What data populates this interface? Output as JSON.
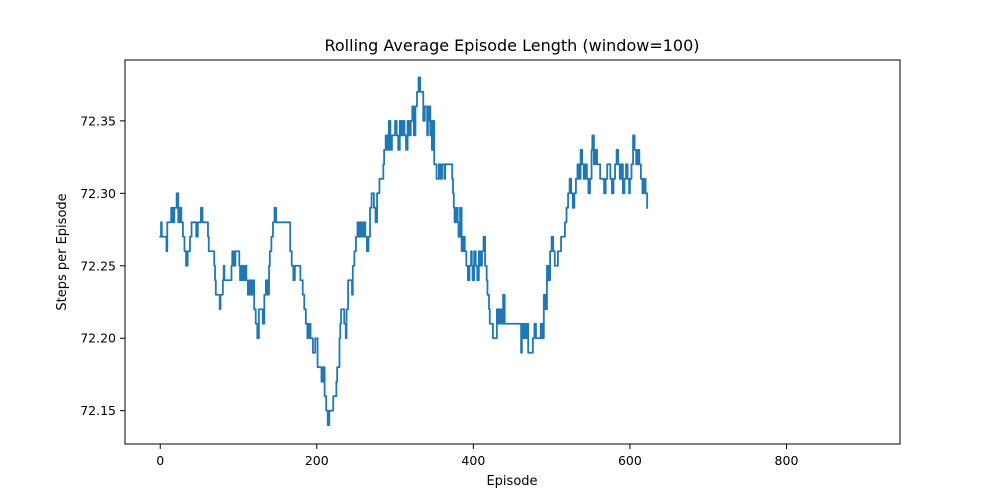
{
  "chart_data": {
    "type": "line",
    "title": "Rolling Average Episode Length (window=100)",
    "xlabel": "Episode",
    "ylabel": "Steps per Episode",
    "xlim": [
      -45,
      945
    ],
    "ylim": [
      72.127,
      72.392
    ],
    "xticks": [
      0,
      200,
      400,
      600,
      800
    ],
    "yticks": [
      72.15,
      72.2,
      72.25,
      72.3,
      72.35
    ],
    "ytick_labels": [
      "72.15",
      "72.20",
      "72.25",
      "72.30",
      "72.35"
    ],
    "grid": false,
    "series": [
      {
        "color": "#1f77b4",
        "points": [
          [
            0,
            72.27
          ],
          [
            1,
            72.28
          ],
          [
            2,
            72.27
          ],
          [
            7,
            72.27
          ],
          [
            8,
            72.26
          ],
          [
            9,
            72.28
          ],
          [
            13,
            72.28
          ],
          [
            14,
            72.29
          ],
          [
            16,
            72.28
          ],
          [
            18,
            72.29
          ],
          [
            20,
            72.29
          ],
          [
            21,
            72.3
          ],
          [
            23,
            72.28
          ],
          [
            25,
            72.29
          ],
          [
            27,
            72.28
          ],
          [
            29,
            72.27
          ],
          [
            31,
            72.26
          ],
          [
            33,
            72.25
          ],
          [
            35,
            72.26
          ],
          [
            38,
            72.27
          ],
          [
            40,
            72.28
          ],
          [
            45,
            72.28
          ],
          [
            46,
            72.27
          ],
          [
            48,
            72.28
          ],
          [
            50,
            72.28
          ],
          [
            52,
            72.29
          ],
          [
            54,
            72.28
          ],
          [
            60,
            72.28
          ],
          [
            61,
            72.27
          ],
          [
            62,
            72.26
          ],
          [
            68,
            72.26
          ],
          [
            69,
            72.25
          ],
          [
            70,
            72.24
          ],
          [
            71,
            72.23
          ],
          [
            75,
            72.23
          ],
          [
            76,
            72.22
          ],
          [
            77,
            72.23
          ],
          [
            80,
            72.24
          ],
          [
            81,
            72.25
          ],
          [
            82,
            72.24
          ],
          [
            90,
            72.24
          ],
          [
            91,
            72.25
          ],
          [
            92,
            72.26
          ],
          [
            94,
            72.25
          ],
          [
            96,
            72.26
          ],
          [
            100,
            72.26
          ],
          [
            101,
            72.25
          ],
          [
            102,
            72.24
          ],
          [
            104,
            72.25
          ],
          [
            106,
            72.24
          ],
          [
            108,
            72.25
          ],
          [
            110,
            72.24
          ],
          [
            112,
            72.23
          ],
          [
            114,
            72.24
          ],
          [
            116,
            72.23
          ],
          [
            118,
            72.24
          ],
          [
            120,
            72.22
          ],
          [
            122,
            72.21
          ],
          [
            124,
            72.2
          ],
          [
            126,
            72.22
          ],
          [
            130,
            72.22
          ],
          [
            131,
            72.21
          ],
          [
            133,
            72.23
          ],
          [
            135,
            72.24
          ],
          [
            137,
            72.23
          ],
          [
            139,
            72.25
          ],
          [
            140,
            72.26
          ],
          [
            142,
            72.27
          ],
          [
            144,
            72.28
          ],
          [
            146,
            72.29
          ],
          [
            148,
            72.28
          ],
          [
            165,
            72.28
          ],
          [
            166,
            72.26
          ],
          [
            168,
            72.25
          ],
          [
            170,
            72.24
          ],
          [
            172,
            72.25
          ],
          [
            178,
            72.25
          ],
          [
            179,
            72.24
          ],
          [
            181,
            72.24
          ],
          [
            182,
            72.23
          ],
          [
            184,
            72.22
          ],
          [
            186,
            72.21
          ],
          [
            188,
            72.2
          ],
          [
            190,
            72.21
          ],
          [
            192,
            72.2
          ],
          [
            195,
            72.19
          ],
          [
            197,
            72.19
          ],
          [
            198,
            72.2
          ],
          [
            200,
            72.2
          ],
          [
            201,
            72.18
          ],
          [
            204,
            72.18
          ],
          [
            206,
            72.17
          ],
          [
            208,
            72.18
          ],
          [
            210,
            72.16
          ],
          [
            212,
            72.15
          ],
          [
            214,
            72.14
          ],
          [
            216,
            72.15
          ],
          [
            220,
            72.15
          ],
          [
            221,
            72.16
          ],
          [
            224,
            72.16
          ],
          [
            225,
            72.17
          ],
          [
            226,
            72.18
          ],
          [
            228,
            72.18
          ],
          [
            229,
            72.2
          ],
          [
            230,
            72.21
          ],
          [
            231,
            72.22
          ],
          [
            233,
            72.22
          ],
          [
            235,
            72.21
          ],
          [
            237,
            72.2
          ],
          [
            238,
            72.22
          ],
          [
            240,
            72.24
          ],
          [
            244,
            72.24
          ],
          [
            245,
            72.23
          ],
          [
            246,
            72.25
          ],
          [
            248,
            72.26
          ],
          [
            250,
            72.27
          ],
          [
            252,
            72.28
          ],
          [
            254,
            72.27
          ],
          [
            256,
            72.28
          ],
          [
            258,
            72.27
          ],
          [
            260,
            72.28
          ],
          [
            262,
            72.27
          ],
          [
            264,
            72.26
          ],
          [
            266,
            72.27
          ],
          [
            268,
            72.29
          ],
          [
            270,
            72.3
          ],
          [
            273,
            72.29
          ],
          [
            275,
            72.28
          ],
          [
            277,
            72.3
          ],
          [
            280,
            72.31
          ],
          [
            284,
            72.31
          ],
          [
            285,
            72.32
          ],
          [
            286,
            72.33
          ],
          [
            288,
            72.34
          ],
          [
            290,
            72.33
          ],
          [
            292,
            72.35
          ],
          [
            294,
            72.33
          ],
          [
            296,
            72.34
          ],
          [
            298,
            72.34
          ],
          [
            300,
            72.35
          ],
          [
            302,
            72.34
          ],
          [
            304,
            72.33
          ],
          [
            306,
            72.35
          ],
          [
            308,
            72.34
          ],
          [
            310,
            72.35
          ],
          [
            312,
            72.34
          ],
          [
            314,
            72.33
          ],
          [
            316,
            72.35
          ],
          [
            318,
            72.34
          ],
          [
            320,
            72.35
          ],
          [
            322,
            72.36
          ],
          [
            324,
            72.34
          ],
          [
            326,
            72.36
          ],
          [
            328,
            72.37
          ],
          [
            330,
            72.38
          ],
          [
            332,
            72.37
          ],
          [
            335,
            72.37
          ],
          [
            336,
            72.35
          ],
          [
            338,
            72.36
          ],
          [
            340,
            72.36
          ],
          [
            341,
            72.34
          ],
          [
            342,
            72.35
          ],
          [
            343,
            72.36
          ],
          [
            345,
            72.34
          ],
          [
            346,
            72.35
          ],
          [
            347,
            72.33
          ],
          [
            348,
            72.35
          ],
          [
            350,
            72.32
          ],
          [
            352,
            72.32
          ],
          [
            353,
            72.31
          ],
          [
            356,
            72.32
          ],
          [
            358,
            72.31
          ],
          [
            360,
            72.32
          ],
          [
            362,
            72.32
          ],
          [
            363,
            72.31
          ],
          [
            364,
            72.32
          ],
          [
            372,
            72.32
          ],
          [
            373,
            72.31
          ],
          [
            374,
            72.3
          ],
          [
            375,
            72.29
          ],
          [
            376,
            72.28
          ],
          [
            378,
            72.29
          ],
          [
            380,
            72.28
          ],
          [
            381,
            72.27
          ],
          [
            383,
            72.29
          ],
          [
            385,
            72.26
          ],
          [
            387,
            72.27
          ],
          [
            389,
            72.26
          ],
          [
            391,
            72.25
          ],
          [
            393,
            72.24
          ],
          [
            395,
            72.25
          ],
          [
            397,
            72.26
          ],
          [
            398,
            72.25
          ],
          [
            399,
            72.24
          ],
          [
            401,
            72.26
          ],
          [
            403,
            72.25
          ],
          [
            405,
            72.24
          ],
          [
            407,
            72.26
          ],
          [
            409,
            72.25
          ],
          [
            411,
            72.26
          ],
          [
            413,
            72.27
          ],
          [
            415,
            72.25
          ],
          [
            417,
            72.24
          ],
          [
            418,
            72.23
          ],
          [
            420,
            72.22
          ],
          [
            421,
            72.21
          ],
          [
            423,
            72.21
          ],
          [
            425,
            72.2
          ],
          [
            428,
            72.2
          ],
          [
            430,
            72.22
          ],
          [
            432,
            72.21
          ],
          [
            434,
            72.22
          ],
          [
            436,
            72.21
          ],
          [
            438,
            72.23
          ],
          [
            440,
            72.21
          ],
          [
            442,
            72.21
          ],
          [
            460,
            72.21
          ],
          [
            461,
            72.19
          ],
          [
            462,
            72.21
          ],
          [
            463,
            72.2
          ],
          [
            465,
            72.21
          ],
          [
            467,
            72.2
          ],
          [
            469,
            72.21
          ],
          [
            470,
            72.19
          ],
          [
            475,
            72.19
          ],
          [
            476,
            72.2
          ],
          [
            478,
            72.21
          ],
          [
            480,
            72.2
          ],
          [
            485,
            72.2
          ],
          [
            486,
            72.21
          ],
          [
            488,
            72.2
          ],
          [
            490,
            72.23
          ],
          [
            492,
            72.22
          ],
          [
            494,
            72.25
          ],
          [
            496,
            72.24
          ],
          [
            498,
            72.26
          ],
          [
            500,
            72.27
          ],
          [
            502,
            72.26
          ],
          [
            504,
            72.25
          ],
          [
            508,
            72.26
          ],
          [
            511,
            72.26
          ],
          [
            512,
            72.27
          ],
          [
            516,
            72.27
          ],
          [
            517,
            72.28
          ],
          [
            519,
            72.29
          ],
          [
            521,
            72.3
          ],
          [
            523,
            72.31
          ],
          [
            525,
            72.3
          ],
          [
            527,
            72.29
          ],
          [
            529,
            72.3
          ],
          [
            531,
            72.31
          ],
          [
            533,
            72.32
          ],
          [
            535,
            72.31
          ],
          [
            537,
            72.33
          ],
          [
            539,
            72.32
          ],
          [
            541,
            72.31
          ],
          [
            543,
            72.32
          ],
          [
            545,
            72.31
          ],
          [
            547,
            72.3
          ],
          [
            549,
            72.31
          ],
          [
            551,
            72.33
          ],
          [
            552,
            72.34
          ],
          [
            554,
            72.32
          ],
          [
            556,
            72.33
          ],
          [
            558,
            72.32
          ],
          [
            560,
            72.32
          ],
          [
            562,
            72.31
          ],
          [
            564,
            72.31
          ],
          [
            566,
            72.31
          ],
          [
            567,
            72.3
          ],
          [
            569,
            72.31
          ],
          [
            571,
            72.32
          ],
          [
            573,
            72.32
          ],
          [
            575,
            72.31
          ],
          [
            577,
            72.3
          ],
          [
            579,
            72.31
          ],
          [
            581,
            72.32
          ],
          [
            583,
            72.33
          ],
          [
            585,
            72.32
          ],
          [
            587,
            72.31
          ],
          [
            589,
            72.32
          ],
          [
            591,
            72.3
          ],
          [
            593,
            72.31
          ],
          [
            595,
            72.32
          ],
          [
            597,
            72.31
          ],
          [
            599,
            72.3
          ],
          [
            600,
            72.31
          ],
          [
            602,
            72.32
          ],
          [
            604,
            72.34
          ],
          [
            606,
            72.33
          ],
          [
            608,
            72.32
          ],
          [
            610,
            72.33
          ],
          [
            612,
            72.32
          ],
          [
            614,
            72.31
          ],
          [
            616,
            72.3
          ],
          [
            618,
            72.31
          ],
          [
            620,
            72.3
          ],
          [
            622,
            72.29
          ]
        ]
      }
    ]
  }
}
